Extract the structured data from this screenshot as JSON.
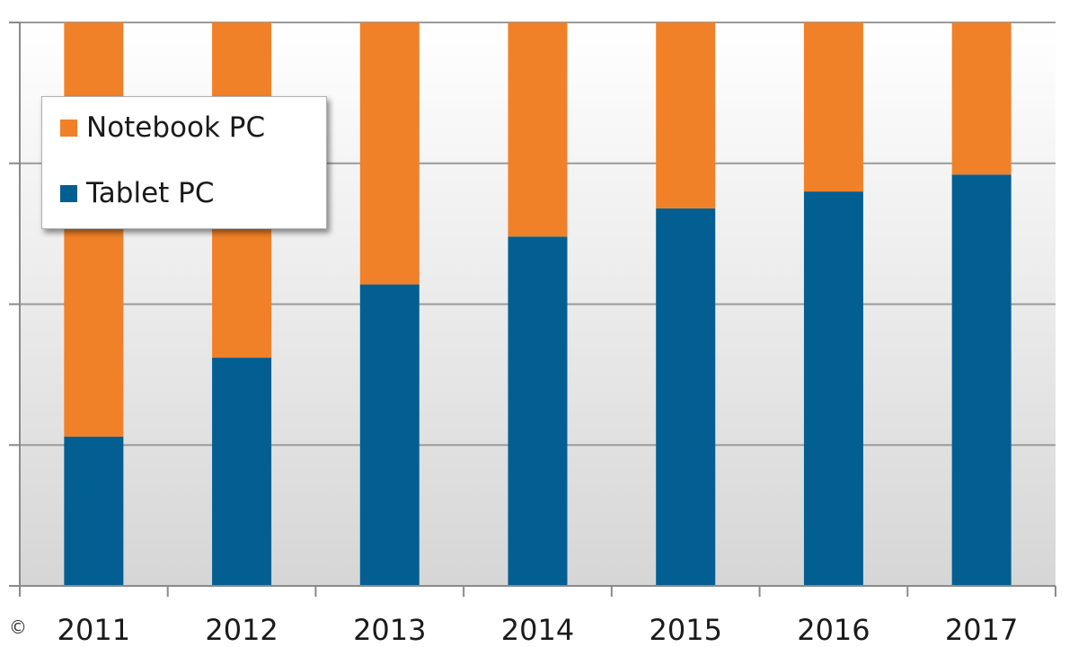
{
  "chart_data": {
    "type": "bar",
    "stacked": true,
    "normalized": true,
    "categories": [
      "2011",
      "2012",
      "2013",
      "2014",
      "2015",
      "2016",
      "2017"
    ],
    "series": [
      {
        "name": "Tablet PC",
        "color": "#035F92",
        "values": [
          26.5,
          40.5,
          53.5,
          62,
          67,
          70,
          73
        ]
      },
      {
        "name": "Notebook PC",
        "color": "#F08128",
        "values": [
          73.5,
          59.5,
          46.5,
          38,
          33,
          30,
          27
        ]
      }
    ],
    "ylim": [
      0,
      100
    ],
    "y_gridlines": [
      0,
      25,
      50,
      75,
      100
    ],
    "y_tick_labels_shown": false,
    "grid": true,
    "legend": {
      "placement": "top-left",
      "order": [
        "Notebook PC",
        "Tablet PC"
      ]
    },
    "background": "light-gray gradient"
  },
  "footer": {
    "copyright_symbol": "©"
  }
}
